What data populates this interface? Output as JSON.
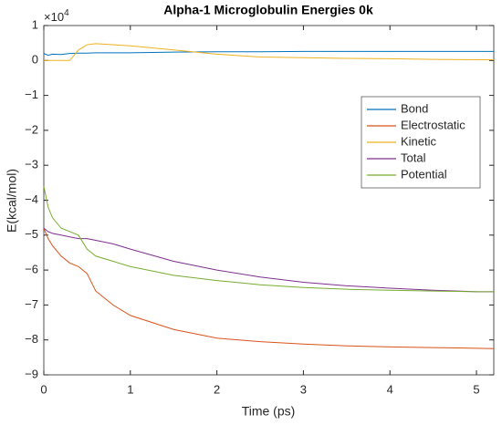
{
  "chart_data": {
    "type": "line",
    "title": "Alpha-1 Microglobulin Energies 0k",
    "xlabel": "Time (ps)",
    "ylabel": "E(kcal/mol)",
    "y_exponent_base": "×10",
    "y_exponent": "4",
    "x": [
      0,
      0.05,
      0.1,
      0.2,
      0.3,
      0.4,
      0.5,
      0.6,
      0.8,
      1,
      1.5,
      2,
      2.5,
      3,
      3.5,
      4,
      4.5,
      5,
      5.2
    ],
    "series": [
      {
        "name": "Bond",
        "color": "#0072BD",
        "values": [
          0.2,
          0.15,
          0.18,
          0.17,
          0.2,
          0.21,
          0.21,
          0.22,
          0.22,
          0.22,
          0.24,
          0.25,
          0.25,
          0.26,
          0.26,
          0.26,
          0.26,
          0.26,
          0.26
        ]
      },
      {
        "name": "Electrostatic",
        "color": "#D95319",
        "values": [
          -4.8,
          -5.1,
          -5.3,
          -5.6,
          -5.8,
          -5.9,
          -6.1,
          -6.6,
          -7.0,
          -7.3,
          -7.7,
          -7.95,
          -8.05,
          -8.12,
          -8.17,
          -8.2,
          -8.22,
          -8.24,
          -8.25
        ]
      },
      {
        "name": "Kinetic",
        "color": "#EDB120",
        "values": [
          0,
          0,
          0,
          0,
          0,
          0.3,
          0.45,
          0.48,
          0.45,
          0.42,
          0.3,
          0.18,
          0.1,
          0.08,
          0.06,
          0.05,
          0.03,
          0.02,
          0.02
        ]
      },
      {
        "name": "Total",
        "color": "#7E2F8E",
        "values": [
          -4.8,
          -4.9,
          -4.95,
          -5.0,
          -5.05,
          -5.1,
          -5.1,
          -5.15,
          -5.25,
          -5.4,
          -5.75,
          -6.0,
          -6.2,
          -6.35,
          -6.45,
          -6.52,
          -6.58,
          -6.62,
          -6.62
        ]
      },
      {
        "name": "Potential",
        "color": "#77AC30",
        "values": [
          -3.6,
          -4.2,
          -4.5,
          -4.8,
          -4.9,
          -5.0,
          -5.4,
          -5.6,
          -5.75,
          -5.9,
          -6.15,
          -6.3,
          -6.42,
          -6.5,
          -6.55,
          -6.58,
          -6.6,
          -6.62,
          -6.62
        ]
      }
    ],
    "xlim": [
      0,
      5.2
    ],
    "xticks": [
      0,
      1,
      2,
      3,
      4,
      5
    ],
    "ylim": [
      -9,
      1
    ],
    "yticks": [
      {
        "value": -9,
        "label": "−9"
      },
      {
        "value": -8,
        "label": "−8"
      },
      {
        "value": -7,
        "label": "−7"
      },
      {
        "value": -6,
        "label": "−6"
      },
      {
        "value": -5,
        "label": "−5"
      },
      {
        "value": -4,
        "label": "−4"
      },
      {
        "value": -3,
        "label": "−3"
      },
      {
        "value": -2,
        "label": "−2"
      },
      {
        "value": -1,
        "label": "−1"
      },
      0,
      1
    ],
    "grid": false,
    "legend_location": "northeast"
  }
}
